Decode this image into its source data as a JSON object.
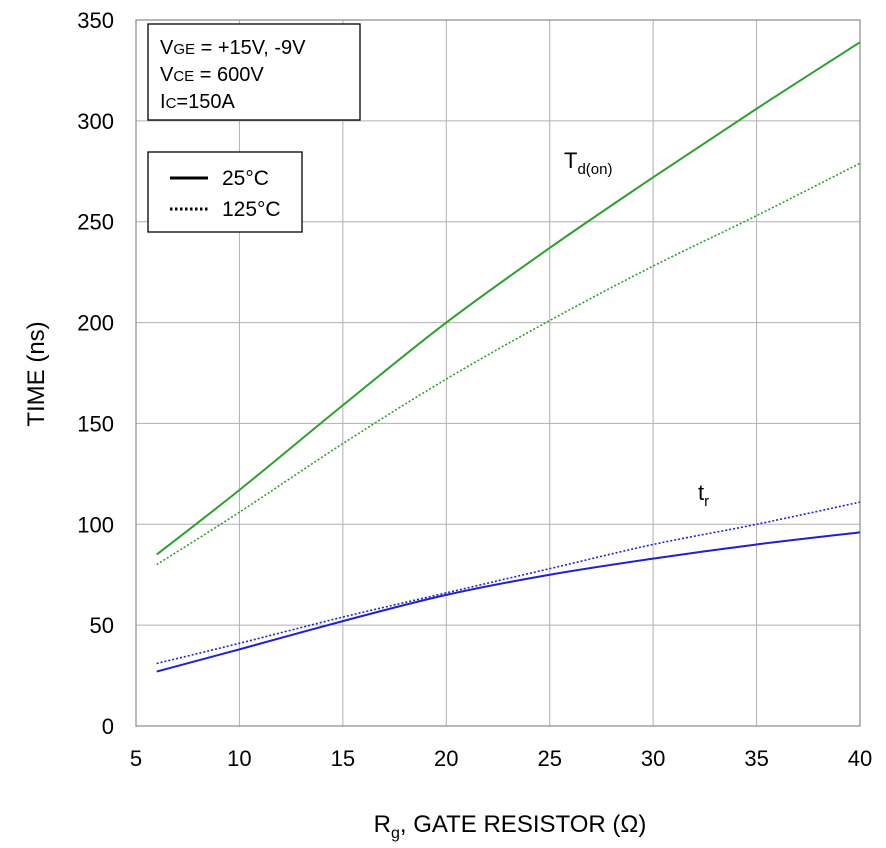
{
  "chart_data": {
    "type": "line",
    "xlabel_main": "R",
    "xlabel_sub": "g",
    "xlabel_rest": ", GATE RESISTOR (Ω)",
    "ylabel": "TIME (ns)",
    "xlim": [
      5,
      40
    ],
    "ylim": [
      0,
      350
    ],
    "xticks": [
      "5",
      "10",
      "15",
      "20",
      "25",
      "30",
      "35",
      "40"
    ],
    "yticks": [
      "0",
      "50",
      "100",
      "150",
      "200",
      "250",
      "300",
      "350"
    ],
    "grid": true,
    "conditions": {
      "line1": {
        "main": "V",
        "sub": "GE",
        "rest": " = +15V, -9V"
      },
      "line2": {
        "main": "V",
        "sub": "CE",
        "rest": " = 600V"
      },
      "line3": {
        "main": "I",
        "sub": "C",
        "rest": "=150A"
      }
    },
    "legend": {
      "placement": "top-left",
      "entries": [
        {
          "label": "25°C",
          "style": "solid"
        },
        {
          "label": "125°C",
          "style": "dotted"
        }
      ]
    },
    "annotations": {
      "td_on": {
        "main": "T",
        "sub": "d(on)"
      },
      "tr": {
        "main": "t",
        "sub": "r"
      }
    },
    "colors": {
      "td_on": "#2ca02c",
      "tr": "#1f1fd6",
      "grid": "#b0b0b0"
    },
    "series": [
      {
        "name": "Td(on) 25°C",
        "group": "td_on",
        "style": "solid",
        "x": [
          6,
          10,
          15,
          20,
          25,
          30,
          35,
          40
        ],
        "y": [
          85,
          117,
          159,
          200,
          237,
          272,
          306,
          339
        ]
      },
      {
        "name": "Td(on) 125°C",
        "group": "td_on",
        "style": "dotted",
        "x": [
          6,
          10,
          15,
          20,
          25,
          30,
          35,
          40
        ],
        "y": [
          80,
          106,
          140,
          172,
          201,
          228,
          253,
          279
        ]
      },
      {
        "name": "tr 25°C",
        "group": "tr",
        "style": "solid",
        "x": [
          6,
          10,
          15,
          20,
          25,
          30,
          35,
          40
        ],
        "y": [
          27,
          38,
          52,
          65,
          75,
          83,
          90,
          96
        ]
      },
      {
        "name": "tr 125°C",
        "group": "tr",
        "style": "dotted",
        "x": [
          6,
          10,
          15,
          20,
          25,
          30,
          35,
          40
        ],
        "y": [
          31,
          41,
          54,
          66,
          78,
          90,
          100,
          111
        ]
      }
    ]
  }
}
